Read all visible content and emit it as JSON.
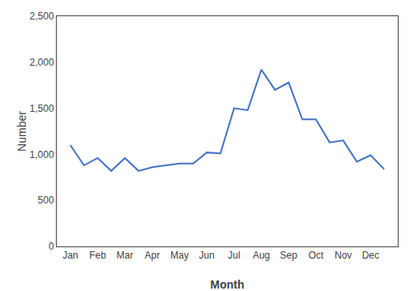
{
  "chart_data": {
    "type": "line",
    "x": [
      1,
      1.5,
      2,
      2.5,
      3,
      3.5,
      4,
      4.5,
      5,
      5.5,
      6,
      6.5,
      7,
      7.5,
      8,
      8.5,
      9,
      9.5,
      10,
      10.5,
      11,
      11.5,
      12,
      12.5
    ],
    "values": [
      1100,
      880,
      960,
      820,
      960,
      820,
      860,
      880,
      900,
      900,
      1020,
      1010,
      1500,
      1480,
      1920,
      1700,
      1780,
      1380,
      1380,
      1130,
      1150,
      920,
      990,
      840
    ],
    "color": "#4472C4",
    "xlabel": "Month",
    "ylabel": "Number",
    "xlim": [
      0.5,
      13.0
    ],
    "ylim": [
      0,
      2500
    ],
    "xticks": [
      {
        "value": 1,
        "label": "Jan"
      },
      {
        "value": 2,
        "label": "Feb"
      },
      {
        "value": 3,
        "label": "Mar"
      },
      {
        "value": 4,
        "label": "Apr"
      },
      {
        "value": 5,
        "label": "May"
      },
      {
        "value": 6,
        "label": "Jun"
      },
      {
        "value": 7,
        "label": "Jul"
      },
      {
        "value": 8,
        "label": "Aug"
      },
      {
        "value": 9,
        "label": "Sep"
      },
      {
        "value": 10,
        "label": "Oct"
      },
      {
        "value": 11,
        "label": "Nov"
      },
      {
        "value": 12,
        "label": "Dec"
      }
    ],
    "yticks": [
      0,
      500,
      {
        "value": 1000,
        "label": "1,000"
      },
      {
        "value": 1500,
        "label": "1,500"
      },
      {
        "value": 2000,
        "label": "2,000"
      },
      {
        "value": 2500,
        "label": "2,500"
      }
    ],
    "grid": false
  }
}
